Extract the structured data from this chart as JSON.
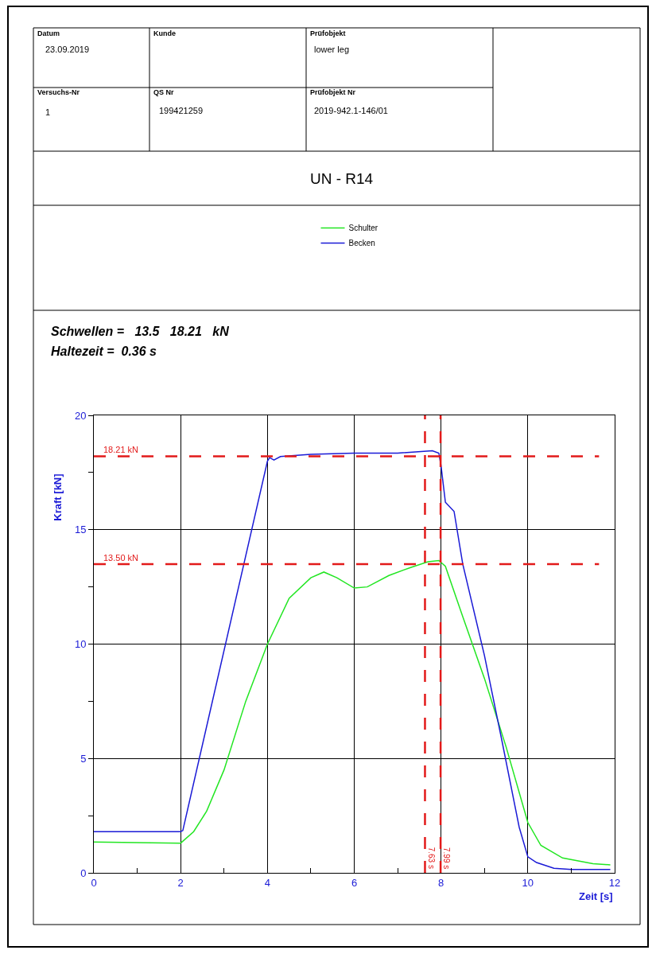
{
  "chart_data": {
    "type": "line",
    "title": "UN - R14",
    "annotations": [
      "Datum",
      "23.09.2019",
      "Kunde",
      "Prüfobjekt",
      "lower leg",
      "Versuchs-Nr",
      "1",
      "QS Nr",
      "199421259",
      "Prüfobjekt Nr",
      "2019-942.1-146/01",
      "Schwellen =   13.5   18.21   kN",
      "Haltezeit =  0.36 s"
    ],
    "xlabel": "Zeit [s]",
    "ylabel": "Kraft [kN]",
    "series": [
      {
        "name": "Schulter",
        "color": "#22e622",
        "x": [
          0,
          2,
          2.3,
          2.6,
          3,
          3.5,
          4,
          4.5,
          5,
          5.3,
          5.6,
          6,
          6.3,
          6.8,
          7.3,
          7.7,
          7.95,
          8.1,
          8.5,
          9,
          9.5,
          10,
          10.3,
          10.8,
          11.5,
          11.9
        ],
        "values": [
          1.35,
          1.3,
          1.8,
          2.7,
          4.5,
          7.5,
          10,
          12,
          12.9,
          13.15,
          12.9,
          12.45,
          12.5,
          13.0,
          13.35,
          13.6,
          13.65,
          13.4,
          11.2,
          8.5,
          5.5,
          2.2,
          1.2,
          0.65,
          0.4,
          0.35
        ]
      },
      {
        "name": "Becken",
        "color": "#1a1ad6",
        "x": [
          0,
          2,
          2.05,
          4,
          4.05,
          4.15,
          4.3,
          5,
          6,
          7,
          7.8,
          7.95,
          8.0,
          8.1,
          8.3,
          8.5,
          9,
          9.4,
          9.8,
          10,
          10.2,
          10.6,
          11,
          11.9
        ],
        "values": [
          1.8,
          1.8,
          1.85,
          18.0,
          18.15,
          18.05,
          18.2,
          18.3,
          18.35,
          18.35,
          18.45,
          18.35,
          17.8,
          16.2,
          15.8,
          13.5,
          9.5,
          5.8,
          2.0,
          0.7,
          0.45,
          0.2,
          0.15,
          0.15
        ]
      }
    ],
    "ref_lines": [
      {
        "axis": "y",
        "value": 18.21,
        "label": "18.21 kN",
        "color": "#e21a1a",
        "line_style": "dashed"
      },
      {
        "axis": "y",
        "value": 13.5,
        "label": "13.50 kN",
        "color": "#e21a1a",
        "line_style": "dashed"
      },
      {
        "axis": "x",
        "value": 7.63,
        "label": "7.63 s",
        "color": "#e21a1a",
        "line_style": "dashed"
      },
      {
        "axis": "x",
        "value": 7.99,
        "label": "7.99 s",
        "color": "#e21a1a",
        "line_style": "dashed"
      }
    ],
    "xlim": [
      0,
      12
    ],
    "ylim": [
      0,
      20
    ],
    "xticks": [
      0,
      {
        "value": 1,
        "label": null
      },
      2,
      {
        "value": 3,
        "label": null
      },
      4,
      {
        "value": 5,
        "label": null
      },
      6,
      {
        "value": 7,
        "label": null
      },
      8,
      {
        "value": 9,
        "label": null
      },
      10,
      {
        "value": 11,
        "label": null
      },
      12
    ],
    "yticks": [
      0,
      {
        "value": 2.5,
        "label": null
      },
      5,
      {
        "value": 7.5,
        "label": null
      },
      10,
      {
        "value": 12.5,
        "label": null
      },
      15,
      {
        "value": 17.5,
        "label": null
      },
      20
    ],
    "grid": true,
    "legend": "top",
    "marker": "none",
    "line_style": "solid"
  }
}
